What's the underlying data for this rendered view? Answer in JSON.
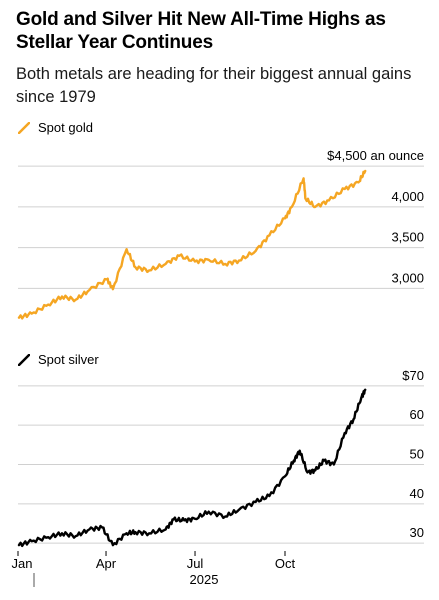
{
  "title": "Gold and Silver Hit New All-Time Highs as Stellar Year Continues",
  "subtitle": "Both metals are heading for their biggest annual gains since 1979",
  "colors": {
    "gold": "#f5a623",
    "silver": "#000000",
    "grid": "#d0d0d0"
  },
  "chart_data": [
    {
      "type": "line",
      "legend": "Spot gold",
      "unit_label": "$4,500 an ounce",
      "ylim": [
        2550,
        4600
      ],
      "yticks": [
        3000,
        3500,
        4000,
        4500
      ],
      "ytick_labels": [
        "3,000",
        "3,500",
        "4,000",
        ""
      ],
      "series": [
        {
          "name": "Spot gold",
          "x": [
            "2025-01-02",
            "2025-01-15",
            "2025-02-01",
            "2025-02-15",
            "2025-03-01",
            "2025-03-15",
            "2025-04-02",
            "2025-04-08",
            "2025-04-22",
            "2025-05-01",
            "2025-05-15",
            "2025-06-01",
            "2025-06-15",
            "2025-07-01",
            "2025-07-15",
            "2025-08-01",
            "2025-08-15",
            "2025-09-01",
            "2025-09-15",
            "2025-10-01",
            "2025-10-08",
            "2025-10-20",
            "2025-10-22",
            "2025-11-01",
            "2025-11-15",
            "2025-12-01",
            "2025-12-15",
            "2025-12-22"
          ],
          "values": [
            2640,
            2690,
            2800,
            2900,
            2860,
            2980,
            3110,
            2990,
            3480,
            3260,
            3220,
            3300,
            3400,
            3330,
            3350,
            3300,
            3340,
            3460,
            3650,
            3860,
            4000,
            4350,
            4100,
            4000,
            4080,
            4220,
            4300,
            4440
          ]
        }
      ]
    },
    {
      "type": "line",
      "legend": "Spot silver",
      "ylim": [
        28,
        72
      ],
      "yticks": [
        30,
        40,
        50,
        60,
        70
      ],
      "ytick_labels": [
        "30",
        "40",
        "50",
        "60",
        "$70"
      ],
      "xticks": [
        "2025-01-01",
        "2025-04-01",
        "2025-07-01",
        "2025-10-01"
      ],
      "xtick_labels": [
        "Jan",
        "Apr",
        "Jul",
        "Oct"
      ],
      "year_label": "2025",
      "series": [
        {
          "name": "Spot silver",
          "x": [
            "2025-01-02",
            "2025-01-15",
            "2025-02-01",
            "2025-02-15",
            "2025-03-01",
            "2025-03-15",
            "2025-03-28",
            "2025-04-08",
            "2025-04-22",
            "2025-05-01",
            "2025-05-15",
            "2025-06-01",
            "2025-06-09",
            "2025-06-20",
            "2025-07-01",
            "2025-07-15",
            "2025-08-01",
            "2025-08-15",
            "2025-09-01",
            "2025-09-15",
            "2025-10-01",
            "2025-10-10",
            "2025-10-16",
            "2025-10-24",
            "2025-11-01",
            "2025-11-10",
            "2025-11-20",
            "2025-12-01",
            "2025-12-10",
            "2025-12-18",
            "2025-12-22"
          ],
          "values": [
            29.5,
            30.5,
            31.5,
            32.5,
            31.8,
            33.5,
            34.0,
            29.5,
            32.5,
            32.8,
            32.5,
            33.5,
            36.0,
            35.8,
            36.2,
            38.0,
            36.8,
            38.5,
            40.5,
            42.0,
            47.0,
            51.0,
            53.5,
            48.0,
            48.5,
            51.0,
            50.0,
            58.0,
            61.5,
            67.0,
            69.0
          ]
        }
      ]
    }
  ]
}
